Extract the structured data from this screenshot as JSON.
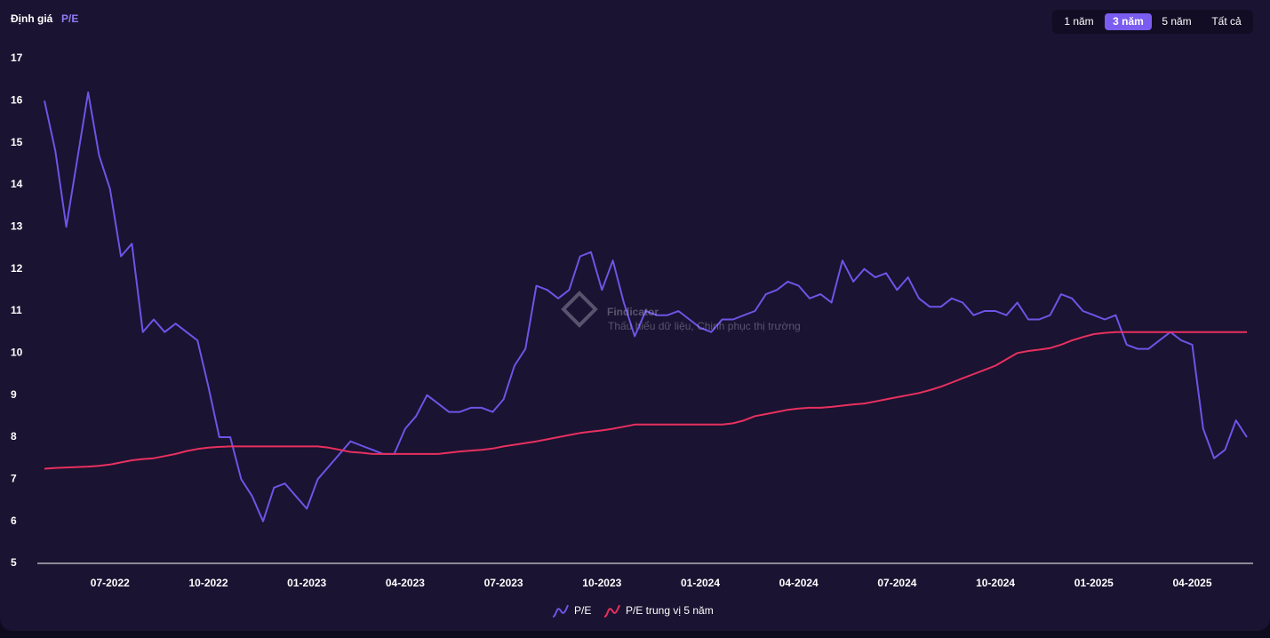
{
  "chart_data": {
    "type": "line",
    "title": "Định giá",
    "subtitle": "P/E",
    "categories": [
      null,
      null,
      null,
      null,
      null,
      null,
      "07-2022",
      null,
      null,
      null,
      null,
      null,
      null,
      null,
      null,
      "10-2022",
      null,
      null,
      null,
      null,
      null,
      null,
      null,
      null,
      "01-2023",
      null,
      null,
      null,
      null,
      null,
      null,
      null,
      null,
      "04-2023",
      null,
      null,
      null,
      null,
      null,
      null,
      null,
      null,
      "07-2023",
      null,
      null,
      null,
      null,
      null,
      null,
      null,
      null,
      "10-2023",
      null,
      null,
      null,
      null,
      null,
      null,
      null,
      null,
      "01-2024",
      null,
      null,
      null,
      null,
      null,
      null,
      null,
      null,
      "04-2024",
      null,
      null,
      null,
      null,
      null,
      null,
      null,
      null,
      "07-2024",
      null,
      null,
      null,
      null,
      null,
      null,
      null,
      null,
      "10-2024",
      null,
      null,
      null,
      null,
      null,
      null,
      null,
      null,
      "01-2025",
      null,
      null,
      null,
      null,
      null,
      null,
      null,
      null,
      "04-2025",
      null,
      null,
      null,
      null,
      null
    ],
    "series": [
      {
        "name": "P/E",
        "color": "#6c55e6",
        "values": [
          16.0,
          14.8,
          13.0,
          14.6,
          16.2,
          14.7,
          13.9,
          12.3,
          12.6,
          10.5,
          10.8,
          10.5,
          10.7,
          10.5,
          10.3,
          9.2,
          8.0,
          8.0,
          7.0,
          6.6,
          6.0,
          6.8,
          6.9,
          6.6,
          6.3,
          7.0,
          7.3,
          7.6,
          7.9,
          7.8,
          7.7,
          7.6,
          7.6,
          8.2,
          8.5,
          9.0,
          8.8,
          8.6,
          8.6,
          8.7,
          8.7,
          8.6,
          8.9,
          9.7,
          10.1,
          11.6,
          11.5,
          11.3,
          11.5,
          12.3,
          12.4,
          11.5,
          12.2,
          11.2,
          10.4,
          11.0,
          10.9,
          10.9,
          11.0,
          10.8,
          10.6,
          10.5,
          10.8,
          10.8,
          10.9,
          11.0,
          11.4,
          11.5,
          11.7,
          11.6,
          11.3,
          11.4,
          11.2,
          12.2,
          11.7,
          12.0,
          11.8,
          11.9,
          11.5,
          11.8,
          11.3,
          11.1,
          11.1,
          11.3,
          11.2,
          10.9,
          11.0,
          11.0,
          10.9,
          11.2,
          10.8,
          10.8,
          10.9,
          11.4,
          11.3,
          11.0,
          10.9,
          10.8,
          10.9,
          10.2,
          10.1,
          10.1,
          10.3,
          10.5,
          10.3,
          10.2,
          8.2,
          7.5,
          7.7,
          8.4,
          8.0
        ]
      },
      {
        "name": "P/E trung vị 5 năm",
        "color": "#e8305f",
        "values": [
          7.25,
          7.27,
          7.28,
          7.29,
          7.3,
          7.32,
          7.35,
          7.4,
          7.45,
          7.48,
          7.5,
          7.55,
          7.6,
          7.67,
          7.72,
          7.75,
          7.77,
          7.78,
          7.78,
          7.78,
          7.78,
          7.78,
          7.78,
          7.78,
          7.78,
          7.78,
          7.75,
          7.7,
          7.65,
          7.63,
          7.6,
          7.6,
          7.6,
          7.6,
          7.6,
          7.6,
          7.6,
          7.63,
          7.66,
          7.68,
          7.7,
          7.73,
          7.78,
          7.82,
          7.86,
          7.9,
          7.95,
          8.0,
          8.05,
          8.1,
          8.13,
          8.16,
          8.2,
          8.25,
          8.3,
          8.3,
          8.3,
          8.3,
          8.3,
          8.3,
          8.3,
          8.3,
          8.3,
          8.33,
          8.4,
          8.5,
          8.55,
          8.6,
          8.65,
          8.68,
          8.7,
          8.7,
          8.72,
          8.75,
          8.78,
          8.8,
          8.85,
          8.9,
          8.95,
          9.0,
          9.05,
          9.12,
          9.2,
          9.3,
          9.4,
          9.5,
          9.6,
          9.7,
          9.85,
          10.0,
          10.05,
          10.08,
          10.12,
          10.2,
          10.3,
          10.38,
          10.45,
          10.48,
          10.5,
          10.5,
          10.5,
          10.5,
          10.5,
          10.5,
          10.5,
          10.5,
          10.5,
          10.5,
          10.5,
          10.5,
          10.5
        ]
      }
    ],
    "ylim": [
      5,
      17
    ],
    "yticks": [
      5,
      6,
      7,
      8,
      9,
      10,
      11,
      12,
      13,
      14,
      15,
      16,
      17
    ],
    "grid": false,
    "legend": "bottom"
  },
  "range_buttons": [
    {
      "label": "1 năm",
      "active": false
    },
    {
      "label": "3 năm",
      "active": true
    },
    {
      "label": "5 năm",
      "active": false
    },
    {
      "label": "Tất cả",
      "active": false
    }
  ],
  "watermark": {
    "name": "Findicator",
    "tagline": "Thấu hiểu dữ liệu, Chinh phục thị trường"
  }
}
